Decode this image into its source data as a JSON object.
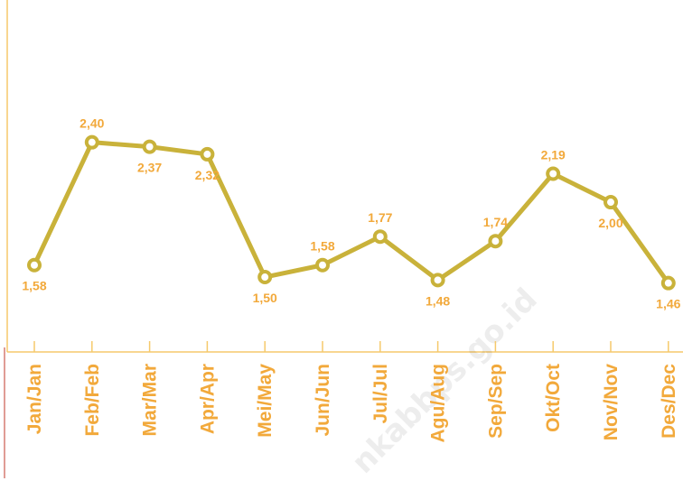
{
  "chart_data": {
    "type": "line",
    "categories": [
      "Jan/Jan",
      "Feb/Feb",
      "Mar/Mar",
      "Apr/Apr",
      "Mei/May",
      "Jun/Jun",
      "Jul/Jul",
      "Agu/Aug",
      "Sep/Sep",
      "Okt/Oct",
      "Nov/Nov",
      "Des/Dec"
    ],
    "values": [
      1.58,
      2.4,
      2.37,
      2.32,
      1.5,
      1.58,
      1.77,
      1.48,
      1.74,
      2.19,
      2.0,
      1.46
    ],
    "value_labels": [
      "1,58",
      "2,40",
      "2,37",
      "2,32",
      "1,50",
      "1,58",
      "1,77",
      "1,48",
      "1,74",
      "2,19",
      "2,00",
      "1,46"
    ],
    "color": "#c9b23a",
    "label_color": "#f2a93b",
    "ylim": [
      1.0,
      3.35
    ],
    "watermark": "nkabbps.go.id"
  }
}
